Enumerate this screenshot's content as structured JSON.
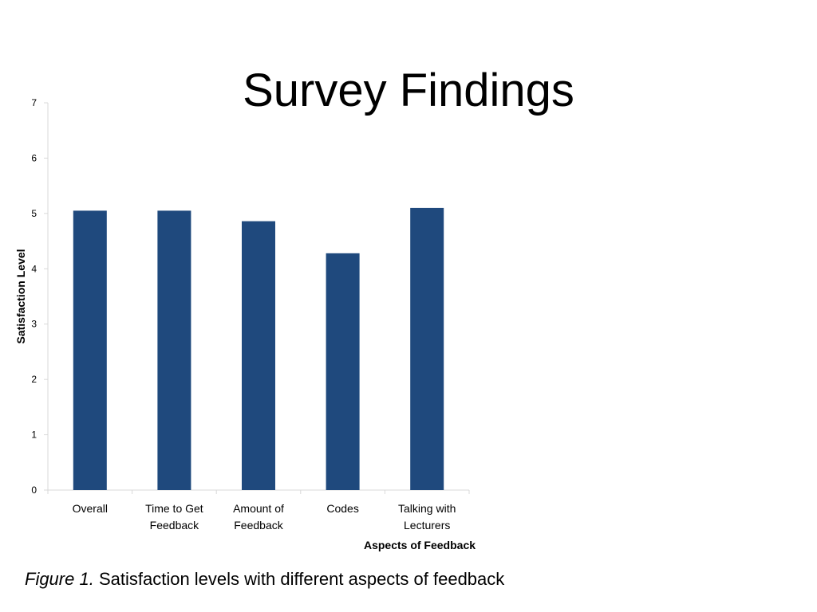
{
  "slide": {
    "title": "Survey Findings"
  },
  "caption": {
    "label": "Figure 1.",
    "text": "Satisfaction levels with different aspects of feedback"
  },
  "chart_data": {
    "type": "bar",
    "categories": [
      [
        "Overall"
      ],
      [
        "Time to Get",
        "Feedback"
      ],
      [
        "Amount of",
        "Feedback"
      ],
      [
        "Codes"
      ],
      [
        "Talking with",
        "Lecturers"
      ]
    ],
    "values": [
      5.05,
      5.05,
      4.86,
      4.28,
      5.1
    ],
    "xlabel": "Aspects of Feedback",
    "ylabel": "Satisfaction Level",
    "ylim": [
      0,
      7
    ],
    "yticks": [
      "0",
      "1",
      "2",
      "3",
      "4",
      "5",
      "6",
      "7"
    ],
    "grid": false,
    "legend": "none",
    "bar_color": "#1F497D",
    "axis_color": "#D9D9D9"
  }
}
